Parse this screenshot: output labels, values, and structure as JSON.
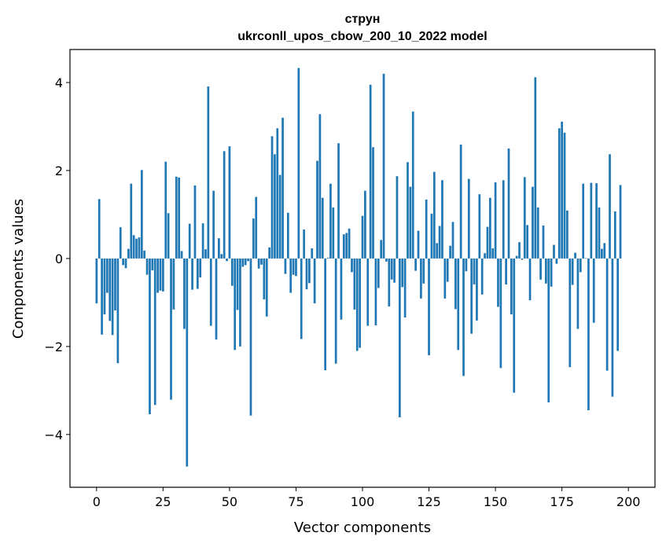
{
  "chart_data": {
    "type": "bar",
    "title_line1": "струн",
    "title_line2": "ukrconll_upos_cbow_200_10_2022 model",
    "xlabel": "Vector components",
    "ylabel": "Components values",
    "xlim": [
      -10,
      210
    ],
    "ylim": [
      -5.2,
      4.75
    ],
    "xticks": [
      0,
      25,
      50,
      75,
      100,
      125,
      150,
      175,
      200
    ],
    "xtick_labels": [
      "0",
      "25",
      "50",
      "75",
      "100",
      "125",
      "150",
      "175",
      "200"
    ],
    "yticks": [
      -4,
      -2,
      0,
      2,
      4
    ],
    "ytick_labels": [
      "−4",
      "−2",
      "0",
      "2",
      "4"
    ],
    "bar_color": "#1f77b4",
    "grid": false,
    "values": [
      -1.02,
      1.35,
      -1.73,
      -1.27,
      -0.78,
      -1.42,
      -1.74,
      -1.18,
      -2.38,
      0.71,
      -0.15,
      -0.22,
      0.22,
      1.7,
      0.53,
      0.45,
      0.48,
      2.01,
      0.18,
      -0.37,
      -3.54,
      -0.27,
      -3.33,
      -0.78,
      -0.73,
      -0.75,
      2.2,
      1.03,
      -3.21,
      -1.16,
      1.86,
      1.84,
      0.17,
      -1.6,
      -4.73,
      0.79,
      -0.71,
      1.66,
      -0.69,
      -0.43,
      0.8,
      0.21,
      3.91,
      -1.53,
      1.54,
      -1.84,
      0.46,
      0.1,
      2.44,
      -0.06,
      2.55,
      -0.62,
      -2.08,
      -1.17,
      -2.0,
      -0.19,
      -0.15,
      -0.06,
      -3.57,
      0.91,
      1.4,
      -0.23,
      -0.14,
      -0.93,
      -1.32,
      0.25,
      2.78,
      2.37,
      2.96,
      1.9,
      3.2,
      -0.35,
      1.04,
      -0.78,
      -0.37,
      -0.4,
      4.33,
      -1.83,
      0.66,
      -0.7,
      -0.56,
      0.23,
      -1.02,
      2.22,
      3.28,
      1.38,
      -2.54,
      0.02,
      1.7,
      1.16,
      -2.39,
      2.62,
      -1.39,
      0.55,
      0.58,
      0.68,
      -0.31,
      -1.16,
      -2.1,
      -2.03,
      0.97,
      1.54,
      -1.53,
      3.95,
      2.53,
      -1.52,
      -0.67,
      0.42,
      4.2,
      -0.07,
      -1.09,
      -0.48,
      -0.55,
      1.87,
      -3.61,
      -0.65,
      -1.34,
      2.19,
      1.63,
      3.34,
      -0.28,
      0.63,
      -0.91,
      -0.57,
      1.34,
      -2.2,
      1.02,
      1.97,
      0.35,
      0.74,
      1.78,
      -0.91,
      -0.53,
      0.29,
      0.83,
      -1.15,
      -2.08,
      2.59,
      -2.67,
      -0.29,
      1.81,
      -1.71,
      -0.59,
      -1.41,
      1.46,
      -0.82,
      0.12,
      0.72,
      1.38,
      0.23,
      1.73,
      -1.1,
      -2.49,
      1.78,
      -0.59,
      2.5,
      -1.27,
      -3.05,
      0.06,
      0.37,
      -0.03,
      1.85,
      0.76,
      -0.95,
      1.63,
      4.12,
      1.16,
      -0.48,
      0.75,
      -0.57,
      -3.27,
      -0.64,
      0.31,
      -0.12,
      2.96,
      3.11,
      2.86,
      1.09,
      -2.47,
      -0.6,
      0.13,
      -1.6,
      -0.31,
      1.7,
      0.01,
      -3.45,
      1.72,
      -1.46,
      1.71,
      1.16,
      0.22,
      0.35,
      -2.55,
      2.37,
      -3.14,
      1.07,
      -2.1,
      1.67
    ]
  }
}
